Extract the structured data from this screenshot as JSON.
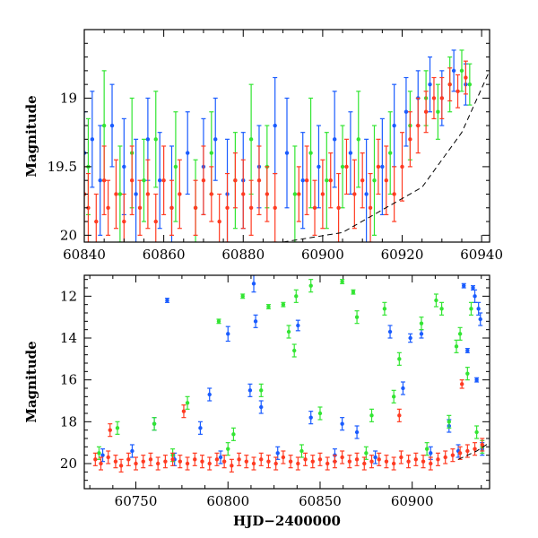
{
  "chart_data": [
    {
      "type": "scatter",
      "panel": "top",
      "title": "",
      "xlabel": "",
      "ylabel": "Magnitude",
      "xlim": [
        60840,
        60942
      ],
      "ylim": [
        20.05,
        18.5
      ],
      "y_inverted": true,
      "xticks": [
        60840,
        60860,
        60880,
        60900,
        60920,
        60940
      ],
      "yticks": [
        19,
        19.5,
        20
      ],
      "ytick_labels": [
        "19",
        "19.5",
        "20"
      ],
      "series_colors": {
        "blue": "#1a5cff",
        "green": "#33e533",
        "red": "#ff3b22"
      },
      "model_curve": {
        "color": "#000000",
        "points": [
          [
            60890,
            20.05
          ],
          [
            60905,
            19.98
          ],
          [
            60925,
            19.65
          ],
          [
            60935,
            19.25
          ],
          [
            60942,
            18.8
          ]
        ]
      },
      "series": [
        {
          "color": "blue",
          "x": [
            60840,
            60842,
            60844,
            60847,
            60850,
            60853,
            60856,
            60859,
            60862,
            60866,
            60870,
            60873,
            60876,
            60880,
            60884,
            60888,
            60891,
            60895,
            60899,
            60903,
            60907,
            60911,
            60915,
            60918,
            60921,
            60924,
            60927,
            60930,
            60933,
            60936
          ],
          "y": [
            19.4,
            19.3,
            19.6,
            19.2,
            19.5,
            19.7,
            19.3,
            19.6,
            19.8,
            19.4,
            19.5,
            19.3,
            19.7,
            19.6,
            19.5,
            19.2,
            19.4,
            19.6,
            19.5,
            19.3,
            19.4,
            19.7,
            19.5,
            19.2,
            19.1,
            19.0,
            18.9,
            19.0,
            18.8,
            18.9
          ],
          "err": [
            0.3,
            0.35,
            0.4,
            0.3,
            0.35,
            0.4,
            0.3,
            0.35,
            0.45,
            0.3,
            0.35,
            0.3,
            0.4,
            0.35,
            0.3,
            0.35,
            0.4,
            0.35,
            0.3,
            0.35,
            0.3,
            0.4,
            0.35,
            0.3,
            0.25,
            0.2,
            0.2,
            0.2,
            0.15,
            0.15
          ]
        },
        {
          "color": "green",
          "x": [
            60841,
            60845,
            60849,
            60852,
            60855,
            60858,
            60863,
            60868,
            60872,
            60878,
            60882,
            60886,
            60893,
            60897,
            60901,
            60905,
            60909,
            60913,
            60917,
            60922,
            60926,
            60929,
            60932,
            60935,
            60937
          ],
          "y": [
            19.5,
            19.2,
            19.7,
            19.4,
            19.6,
            19.3,
            19.5,
            19.8,
            19.4,
            19.6,
            19.3,
            19.5,
            19.7,
            19.4,
            19.6,
            19.5,
            19.3,
            19.6,
            19.4,
            19.2,
            19.0,
            19.1,
            18.9,
            18.8,
            18.9
          ],
          "err": [
            0.35,
            0.4,
            0.35,
            0.4,
            0.3,
            0.35,
            0.4,
            0.35,
            0.3,
            0.35,
            0.4,
            0.3,
            0.35,
            0.4,
            0.35,
            0.3,
            0.35,
            0.4,
            0.3,
            0.25,
            0.2,
            0.2,
            0.2,
            0.15,
            0.15
          ]
        },
        {
          "color": "red",
          "x": [
            60840,
            60841,
            60843,
            60845,
            60846,
            60848,
            60850,
            60852,
            60854,
            60856,
            60858,
            60860,
            60862,
            60864,
            60868,
            60870,
            60872,
            60874,
            60876,
            60878,
            60880,
            60882,
            60884,
            60886,
            60888,
            60894,
            60896,
            60898,
            60900,
            60902,
            60904,
            60906,
            60908,
            60910,
            60912,
            60914,
            60916,
            60918,
            60920,
            60922,
            60924,
            60926,
            60928,
            60930,
            60932,
            60934,
            60936
          ],
          "y": [
            19.7,
            19.8,
            19.9,
            19.6,
            19.8,
            19.7,
            19.9,
            19.6,
            19.8,
            19.7,
            19.9,
            19.6,
            19.8,
            19.7,
            19.8,
            19.6,
            19.7,
            19.9,
            19.8,
            19.6,
            19.7,
            19.8,
            19.6,
            19.7,
            19.8,
            19.7,
            19.6,
            19.8,
            19.7,
            19.6,
            19.8,
            19.5,
            19.7,
            19.6,
            19.8,
            19.5,
            19.6,
            19.7,
            19.5,
            19.3,
            19.2,
            19.1,
            19.0,
            19.0,
            18.9,
            18.95,
            18.85
          ],
          "err": [
            0.2,
            0.25,
            0.2,
            0.25,
            0.2,
            0.25,
            0.2,
            0.25,
            0.2,
            0.25,
            0.2,
            0.25,
            0.2,
            0.25,
            0.2,
            0.25,
            0.2,
            0.2,
            0.25,
            0.2,
            0.25,
            0.2,
            0.25,
            0.2,
            0.25,
            0.2,
            0.25,
            0.2,
            0.25,
            0.2,
            0.25,
            0.2,
            0.25,
            0.2,
            0.25,
            0.2,
            0.25,
            0.2,
            0.25,
            0.2,
            0.2,
            0.15,
            0.15,
            0.15,
            0.12,
            0.12,
            0.12
          ]
        }
      ]
    },
    {
      "type": "scatter",
      "panel": "bottom",
      "title": "",
      "xlabel": "HJD−2400000",
      "ylabel": "Magnitude",
      "xlim": [
        60722,
        60942
      ],
      "ylim": [
        21.2,
        11.0
      ],
      "y_inverted": true,
      "xticks": [
        60750,
        60800,
        60850,
        60900
      ],
      "yticks": [
        12,
        14,
        16,
        18,
        20
      ],
      "ytick_labels": [
        "12",
        "14",
        "16",
        "18",
        "20"
      ],
      "series_colors": {
        "blue": "#1a5cff",
        "green": "#33e533",
        "red": "#ff3b22"
      },
      "model_curve": {
        "color": "#000000",
        "points": [
          [
            60925,
            19.8
          ],
          [
            60935,
            19.4
          ],
          [
            60942,
            19.0
          ]
        ]
      },
      "series": [
        {
          "color": "blue",
          "x": [
            60767,
            60790,
            60800,
            60814,
            60815,
            60818,
            60838,
            60862,
            60888,
            60899,
            60905,
            60928,
            60933,
            60934,
            60936,
            60937,
            60760,
            60785,
            60812,
            60845,
            60870,
            60895,
            60920,
            60930,
            60935,
            60732,
            60748,
            60771,
            60796,
            60827,
            60858,
            60880,
            60910,
            60925,
            60938
          ],
          "y": [
            12.2,
            16.7,
            13.8,
            11.4,
            13.2,
            17.3,
            13.4,
            18.1,
            13.7,
            14.0,
            13.8,
            11.5,
            11.6,
            12.0,
            12.6,
            13.1,
            18.1,
            18.3,
            16.5,
            17.8,
            18.5,
            16.4,
            18.2,
            14.6,
            16.0,
            19.6,
            19.4,
            19.8,
            19.7,
            19.5,
            19.6,
            19.7,
            19.5,
            19.4,
            19.3
          ],
          "err": [
            0.1,
            0.3,
            0.35,
            0.4,
            0.3,
            0.3,
            0.25,
            0.3,
            0.3,
            0.2,
            0.2,
            0.1,
            0.1,
            0.3,
            0.3,
            0.3,
            0.3,
            0.3,
            0.3,
            0.3,
            0.3,
            0.3,
            0.3,
            0.1,
            0.1,
            0.3,
            0.3,
            0.3,
            0.3,
            0.3,
            0.3,
            0.3,
            0.3,
            0.3,
            0.3
          ]
        },
        {
          "color": "green",
          "x": [
            60795,
            60808,
            60822,
            60830,
            60833,
            60836,
            60837,
            60845,
            60862,
            60868,
            60870,
            60885,
            60893,
            60905,
            60913,
            60916,
            60924,
            60926,
            60930,
            60932,
            60935,
            60740,
            60760,
            60778,
            60803,
            60818,
            60850,
            60878,
            60890,
            60920,
            60730,
            60770,
            60800,
            60840,
            60875,
            60908,
            60938
          ],
          "y": [
            13.2,
            12.0,
            12.5,
            12.4,
            13.7,
            14.6,
            12.0,
            11.5,
            11.3,
            11.8,
            13.0,
            12.6,
            15.0,
            13.3,
            12.2,
            12.6,
            14.4,
            13.8,
            15.7,
            12.6,
            18.5,
            18.3,
            18.1,
            17.1,
            18.6,
            16.5,
            17.6,
            17.7,
            16.8,
            18.0,
            19.5,
            19.6,
            19.3,
            19.4,
            19.5,
            19.3,
            19.2
          ],
          "err": [
            0.1,
            0.1,
            0.1,
            0.1,
            0.3,
            0.3,
            0.3,
            0.3,
            0.1,
            0.1,
            0.3,
            0.3,
            0.3,
            0.3,
            0.3,
            0.3,
            0.3,
            0.3,
            0.3,
            0.3,
            0.3,
            0.3,
            0.3,
            0.3,
            0.3,
            0.3,
            0.3,
            0.3,
            0.3,
            0.3,
            0.3,
            0.3,
            0.3,
            0.3,
            0.3,
            0.3,
            0.3
          ]
        },
        {
          "color": "red",
          "x": [
            60728,
            60731,
            60735,
            60739,
            60742,
            60746,
            60750,
            60754,
            60758,
            60762,
            60766,
            60770,
            60774,
            60778,
            60782,
            60786,
            60790,
            60794,
            60798,
            60802,
            60806,
            60810,
            60814,
            60818,
            60822,
            60826,
            60830,
            60834,
            60838,
            60842,
            60846,
            60850,
            60854,
            60858,
            60862,
            60866,
            60870,
            60874,
            60878,
            60882,
            60886,
            60890,
            60894,
            60898,
            60902,
            60906,
            60910,
            60914,
            60918,
            60922,
            60926,
            60930,
            60934,
            60938,
            60776,
            60736,
            60893,
            60927
          ],
          "y": [
            19.8,
            20.0,
            19.7,
            19.9,
            20.1,
            19.8,
            20.0,
            19.9,
            19.8,
            20.0,
            19.9,
            19.8,
            19.9,
            20.0,
            19.8,
            19.9,
            20.0,
            19.8,
            19.9,
            20.1,
            19.8,
            19.9,
            20.0,
            19.8,
            19.9,
            20.0,
            19.7,
            19.9,
            20.0,
            19.8,
            19.9,
            19.8,
            20.0,
            19.9,
            19.7,
            19.9,
            19.8,
            20.0,
            19.9,
            19.8,
            19.9,
            20.0,
            19.7,
            19.9,
            19.8,
            19.9,
            20.0,
            19.8,
            19.7,
            19.6,
            19.5,
            19.4,
            19.3,
            19.1,
            17.5,
            18.4,
            17.7,
            16.2
          ],
          "err": [
            0.3,
            0.3,
            0.3,
            0.3,
            0.3,
            0.3,
            0.3,
            0.3,
            0.3,
            0.3,
            0.3,
            0.3,
            0.3,
            0.3,
            0.3,
            0.3,
            0.3,
            0.3,
            0.3,
            0.3,
            0.3,
            0.3,
            0.3,
            0.3,
            0.3,
            0.3,
            0.3,
            0.3,
            0.3,
            0.3,
            0.3,
            0.3,
            0.3,
            0.3,
            0.3,
            0.3,
            0.3,
            0.3,
            0.3,
            0.3,
            0.3,
            0.3,
            0.3,
            0.3,
            0.3,
            0.3,
            0.3,
            0.3,
            0.3,
            0.3,
            0.3,
            0.3,
            0.3,
            0.3,
            0.3,
            0.3,
            0.3,
            0.2
          ]
        }
      ]
    }
  ]
}
